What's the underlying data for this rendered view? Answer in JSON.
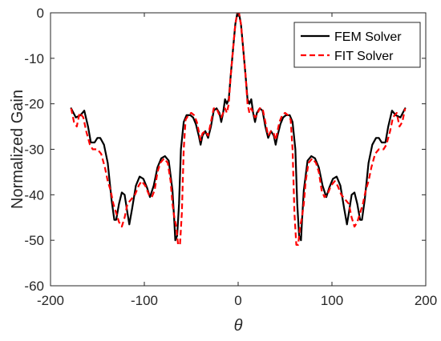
{
  "chart_data": {
    "type": "line",
    "xlabel": "θ",
    "ylabel": "Normalized Gain",
    "xlim": [
      -200,
      200
    ],
    "ylim": [
      -60,
      0
    ],
    "x_ticks": [
      -200,
      -100,
      0,
      100,
      200
    ],
    "y_ticks": [
      0,
      -10,
      -20,
      -30,
      -40,
      -50,
      -60
    ],
    "grid": false,
    "legend_position": "top-right",
    "series": [
      {
        "name": "FEM Solver",
        "color": "#000000",
        "style": "solid",
        "points": [
          [
            -178,
            -21
          ],
          [
            -173,
            -23
          ],
          [
            -168,
            -22.5
          ],
          [
            -164,
            -21.5
          ],
          [
            -160,
            -25
          ],
          [
            -157,
            -28.5
          ],
          [
            -153,
            -28.5
          ],
          [
            -150,
            -27.5
          ],
          [
            -147,
            -27.5
          ],
          [
            -143,
            -29
          ],
          [
            -139,
            -33
          ],
          [
            -135,
            -41
          ],
          [
            -132,
            -45.5
          ],
          [
            -130,
            -45.5
          ],
          [
            -127,
            -42
          ],
          [
            -124,
            -39.5
          ],
          [
            -121,
            -40
          ],
          [
            -118,
            -44
          ],
          [
            -116,
            -46.5
          ],
          [
            -113,
            -43
          ],
          [
            -109,
            -38
          ],
          [
            -105,
            -36
          ],
          [
            -101,
            -36.5
          ],
          [
            -97,
            -38.5
          ],
          [
            -94,
            -40.5
          ],
          [
            -90,
            -38
          ],
          [
            -86,
            -34
          ],
          [
            -82,
            -32
          ],
          [
            -78,
            -31.5
          ],
          [
            -74,
            -32.5
          ],
          [
            -70,
            -39
          ],
          [
            -68,
            -46
          ],
          [
            -67,
            -50
          ],
          [
            -65,
            -49
          ],
          [
            -63,
            -42
          ],
          [
            -61,
            -30
          ],
          [
            -58,
            -24
          ],
          [
            -55,
            -22.5
          ],
          [
            -51,
            -22.5
          ],
          [
            -48,
            -23
          ],
          [
            -45,
            -24.5
          ],
          [
            -42,
            -27
          ],
          [
            -40,
            -29
          ],
          [
            -38,
            -27
          ],
          [
            -35,
            -26
          ],
          [
            -32,
            -27.5
          ],
          [
            -29,
            -25
          ],
          [
            -26,
            -21.5
          ],
          [
            -23,
            -21
          ],
          [
            -20,
            -22
          ],
          [
            -18,
            -24
          ],
          [
            -16,
            -22
          ],
          [
            -14,
            -19
          ],
          [
            -12,
            -20
          ],
          [
            -10,
            -19
          ],
          [
            -8,
            -14
          ],
          [
            -5,
            -7
          ],
          [
            -3,
            -2.5
          ],
          [
            -1,
            -0.2
          ],
          [
            0,
            0
          ],
          [
            1,
            -0.2
          ],
          [
            3,
            -2.5
          ],
          [
            5,
            -7
          ],
          [
            8,
            -14
          ],
          [
            10,
            -19
          ],
          [
            12,
            -20
          ],
          [
            14,
            -19
          ],
          [
            16,
            -22
          ],
          [
            18,
            -24
          ],
          [
            20,
            -22
          ],
          [
            23,
            -21
          ],
          [
            26,
            -21.5
          ],
          [
            29,
            -25
          ],
          [
            32,
            -27.5
          ],
          [
            35,
            -26
          ],
          [
            38,
            -27
          ],
          [
            40,
            -29
          ],
          [
            42,
            -27
          ],
          [
            45,
            -24.5
          ],
          [
            48,
            -23
          ],
          [
            51,
            -22.5
          ],
          [
            55,
            -22.5
          ],
          [
            58,
            -24
          ],
          [
            61,
            -30
          ],
          [
            63,
            -42
          ],
          [
            65,
            -49
          ],
          [
            67,
            -50
          ],
          [
            68,
            -46
          ],
          [
            70,
            -39
          ],
          [
            74,
            -32.5
          ],
          [
            78,
            -31.5
          ],
          [
            82,
            -32
          ],
          [
            86,
            -34
          ],
          [
            90,
            -38
          ],
          [
            94,
            -40.5
          ],
          [
            97,
            -38.5
          ],
          [
            101,
            -36.5
          ],
          [
            105,
            -36
          ],
          [
            109,
            -38
          ],
          [
            113,
            -43
          ],
          [
            116,
            -46.5
          ],
          [
            118,
            -44
          ],
          [
            121,
            -40
          ],
          [
            124,
            -39.5
          ],
          [
            127,
            -42
          ],
          [
            130,
            -45.5
          ],
          [
            132,
            -45.5
          ],
          [
            135,
            -41
          ],
          [
            139,
            -33
          ],
          [
            143,
            -29
          ],
          [
            147,
            -27.5
          ],
          [
            150,
            -27.5
          ],
          [
            153,
            -28.5
          ],
          [
            157,
            -28.5
          ],
          [
            160,
            -25
          ],
          [
            164,
            -21.5
          ],
          [
            168,
            -22.5
          ],
          [
            173,
            -23
          ],
          [
            178,
            -21
          ]
        ]
      },
      {
        "name": "FIT Solver",
        "color": "#ff0000",
        "style": "dashed",
        "points": [
          [
            -178,
            -21
          ],
          [
            -175,
            -24
          ],
          [
            -172,
            -25
          ],
          [
            -169,
            -22
          ],
          [
            -165,
            -23
          ],
          [
            -162,
            -26
          ],
          [
            -158,
            -29
          ],
          [
            -155,
            -30
          ],
          [
            -150,
            -30
          ],
          [
            -146,
            -31
          ],
          [
            -142,
            -34
          ],
          [
            -139,
            -37
          ],
          [
            -136,
            -39
          ],
          [
            -133,
            -42
          ],
          [
            -130,
            -44
          ],
          [
            -127,
            -46
          ],
          [
            -124,
            -47
          ],
          [
            -121,
            -45
          ],
          [
            -118,
            -42
          ],
          [
            -114,
            -41
          ],
          [
            -110,
            -40
          ],
          [
            -106,
            -38
          ],
          [
            -103,
            -37
          ],
          [
            -99,
            -38
          ],
          [
            -95,
            -40
          ],
          [
            -92,
            -40.5
          ],
          [
            -89,
            -39
          ],
          [
            -86,
            -35
          ],
          [
            -83,
            -33
          ],
          [
            -79,
            -32
          ],
          [
            -75,
            -33
          ],
          [
            -72,
            -37
          ],
          [
            -70,
            -42
          ],
          [
            -68,
            -45
          ],
          [
            -66,
            -47
          ],
          [
            -64,
            -51
          ],
          [
            -62,
            -51
          ],
          [
            -60,
            -44
          ],
          [
            -58,
            -30
          ],
          [
            -56,
            -23.5
          ],
          [
            -53,
            -22.5
          ],
          [
            -50,
            -22
          ],
          [
            -47,
            -22.5
          ],
          [
            -44,
            -24
          ],
          [
            -42,
            -26
          ],
          [
            -40,
            -28
          ],
          [
            -38,
            -26.5
          ],
          [
            -35,
            -26
          ],
          [
            -32,
            -27
          ],
          [
            -29,
            -24
          ],
          [
            -26,
            -21
          ],
          [
            -23,
            -21
          ],
          [
            -20,
            -22.5
          ],
          [
            -18,
            -23
          ],
          [
            -16,
            -22
          ],
          [
            -14,
            -21
          ],
          [
            -12,
            -22
          ],
          [
            -10,
            -20
          ],
          [
            -8,
            -14
          ],
          [
            -5,
            -7
          ],
          [
            -3,
            -2.5
          ],
          [
            -1,
            -0.2
          ],
          [
            0,
            0
          ],
          [
            1,
            -0.2
          ],
          [
            3,
            -2.5
          ],
          [
            5,
            -7
          ],
          [
            8,
            -14
          ],
          [
            10,
            -20
          ],
          [
            12,
            -22
          ],
          [
            14,
            -21
          ],
          [
            16,
            -22
          ],
          [
            18,
            -23
          ],
          [
            20,
            -22.5
          ],
          [
            23,
            -21
          ],
          [
            26,
            -21
          ],
          [
            29,
            -24
          ],
          [
            32,
            -27
          ],
          [
            35,
            -26
          ],
          [
            38,
            -26.5
          ],
          [
            40,
            -28
          ],
          [
            42,
            -26
          ],
          [
            44,
            -24
          ],
          [
            47,
            -22.5
          ],
          [
            50,
            -22
          ],
          [
            53,
            -22.5
          ],
          [
            56,
            -23.5
          ],
          [
            58,
            -30
          ],
          [
            60,
            -44
          ],
          [
            62,
            -51
          ],
          [
            64,
            -51
          ],
          [
            66,
            -47
          ],
          [
            68,
            -45
          ],
          [
            70,
            -42
          ],
          [
            72,
            -37
          ],
          [
            75,
            -33
          ],
          [
            79,
            -32
          ],
          [
            83,
            -33
          ],
          [
            86,
            -35
          ],
          [
            89,
            -39
          ],
          [
            92,
            -40.5
          ],
          [
            95,
            -40
          ],
          [
            99,
            -38
          ],
          [
            103,
            -37
          ],
          [
            106,
            -38
          ],
          [
            110,
            -40
          ],
          [
            114,
            -41
          ],
          [
            118,
            -42
          ],
          [
            121,
            -45
          ],
          [
            124,
            -47
          ],
          [
            127,
            -46
          ],
          [
            130,
            -44
          ],
          [
            133,
            -42
          ],
          [
            136,
            -39
          ],
          [
            139,
            -37
          ],
          [
            142,
            -34
          ],
          [
            146,
            -31
          ],
          [
            150,
            -30
          ],
          [
            155,
            -30
          ],
          [
            158,
            -29
          ],
          [
            162,
            -26
          ],
          [
            165,
            -23
          ],
          [
            169,
            -22
          ],
          [
            172,
            -25
          ],
          [
            175,
            -24
          ],
          [
            178,
            -21
          ]
        ]
      }
    ]
  }
}
